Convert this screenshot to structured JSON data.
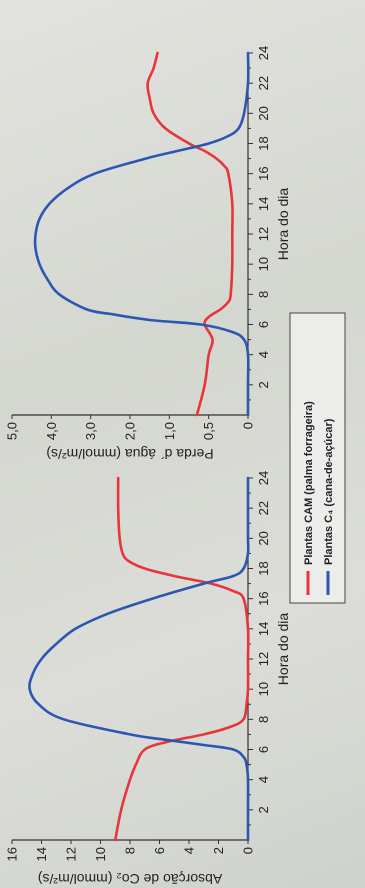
{
  "chart_data": [
    {
      "type": "line",
      "ylabel": "Absorção de Co₂ (mmol/m²/s)",
      "xlabel": "Hora do dia",
      "xlim": [
        0,
        24
      ],
      "ylim": [
        0,
        16
      ],
      "xticks": [
        "2",
        "4",
        "6",
        "8",
        "10",
        "12",
        "14",
        "16",
        "18",
        "20",
        "22",
        "24"
      ],
      "yticks": [
        "0",
        "2",
        "4",
        "6",
        "8",
        "10",
        "12",
        "14",
        "16"
      ],
      "grid": false,
      "series": [
        {
          "name": "Plantas CAM (palma forrageira)",
          "color": "#e8353b",
          "x": [
            0,
            2,
            4,
            5,
            6,
            6.5,
            7,
            7.5,
            8,
            9,
            10,
            12,
            14,
            16,
            16.5,
            17,
            17.5,
            18,
            18.5,
            19,
            20,
            22,
            24
          ],
          "y": [
            9,
            8.6,
            8,
            7.6,
            7,
            5.5,
            3,
            1.2,
            0.3,
            0.1,
            0,
            0,
            0,
            0.3,
            1,
            2.5,
            5,
            7,
            8.1,
            8.5,
            8.7,
            8.8,
            8.8
          ]
        },
        {
          "name": "Plantas C₄ (cana-de-açúcar)",
          "color": "#2d56b3",
          "x": [
            0,
            2,
            4,
            5,
            5.5,
            6,
            6.3,
            6.7,
            7,
            8,
            9,
            10,
            11,
            12,
            13,
            14,
            15,
            16,
            17,
            17.5,
            18,
            19,
            20,
            22,
            24
          ],
          "y": [
            0,
            0,
            0,
            0.1,
            0.3,
            1,
            3,
            6,
            8,
            12.5,
            14.2,
            14.8,
            14.6,
            14,
            13,
            11.7,
            9.5,
            6.5,
            3,
            1,
            0.3,
            0,
            0,
            0,
            0
          ]
        }
      ]
    },
    {
      "type": "line",
      "ylabel": "Perda d´ água (mmol/m²/s)",
      "xlabel": "Hora do dia",
      "xlim": [
        0,
        24
      ],
      "ylim": [
        0,
        5
      ],
      "xticks": [
        "2",
        "4",
        "6",
        "8",
        "10",
        "12",
        "14",
        "16",
        "18",
        "20",
        "22",
        "24"
      ],
      "yticks": [
        "0",
        "0,5",
        "1,0",
        "2,0",
        "3,0",
        "4,0",
        "5,0"
      ],
      "grid": false,
      "series": [
        {
          "name": "Plantas CAM (palma forrageira)",
          "color": "#e8353b",
          "x": [
            0,
            2,
            4,
            5,
            6,
            6.5,
            7,
            7.5,
            8,
            10,
            12,
            14,
            16,
            16.5,
            17,
            17.5,
            18,
            19,
            20,
            21,
            22,
            23,
            24
          ],
          "y": [
            0.65,
            0.55,
            0.5,
            0.45,
            0.55,
            0.5,
            0.35,
            0.25,
            0.22,
            0.2,
            0.2,
            0.2,
            0.25,
            0.3,
            0.4,
            0.55,
            0.75,
            1.1,
            1.4,
            1.5,
            1.55,
            1.4,
            1.3
          ]
        },
        {
          "name": "Plantas C₄ (cana-de-açúcar)",
          "color": "#2d56b3",
          "x": [
            0,
            2,
            4,
            5,
            5.5,
            6,
            6.3,
            6.7,
            7,
            8,
            9,
            10,
            11,
            12,
            13,
            14,
            15,
            16,
            17,
            17.5,
            18,
            18.5,
            19,
            20,
            22,
            24
          ],
          "y": [
            0,
            0,
            0,
            0.05,
            0.2,
            0.6,
            1.5,
            2.5,
            3.1,
            3.8,
            4.1,
            4.3,
            4.4,
            4.4,
            4.3,
            4.05,
            3.6,
            2.9,
            1.6,
            0.9,
            0.5,
            0.25,
            0.12,
            0.05,
            0,
            0
          ]
        }
      ]
    }
  ],
  "legend": {
    "items": [
      {
        "label": "Plantas CAM (palma forrageira)",
        "color": "#e8353b"
      },
      {
        "label": "Plantas C₄ (cana-de-açúcar)",
        "color": "#2d56b3"
      }
    ],
    "position": "bottom-center"
  }
}
